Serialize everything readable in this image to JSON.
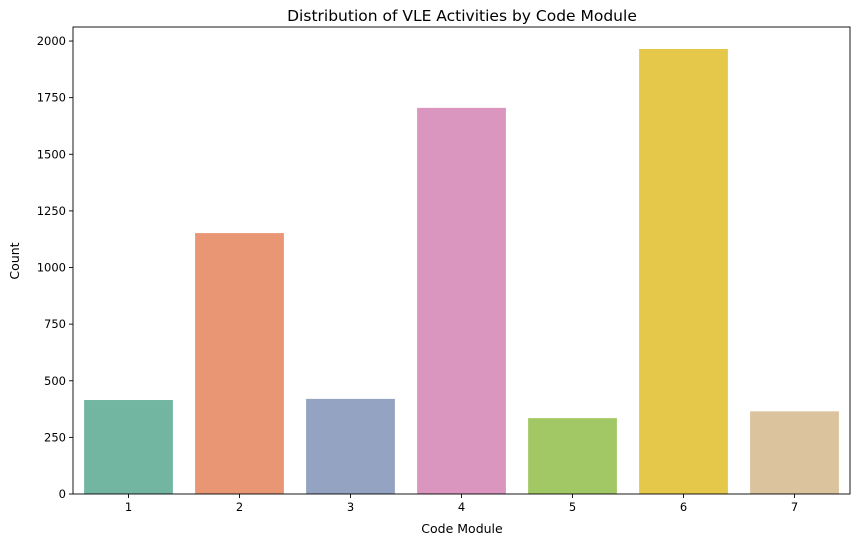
{
  "chart_data": {
    "type": "bar",
    "title": "Distribution of VLE Activities by Code Module",
    "xlabel": "Code Module",
    "ylabel": "Count",
    "categories": [
      "1",
      "2",
      "3",
      "4",
      "5",
      "6",
      "7"
    ],
    "values": [
      415,
      1152,
      420,
      1705,
      335,
      1965,
      365
    ],
    "colors": [
      "#72b6a1",
      "#e99675",
      "#95a3c3",
      "#db96c0",
      "#a2c865",
      "#e5c849",
      "#dbc39d"
    ],
    "ylim": [
      0,
      2062
    ],
    "yticks": [
      0,
      250,
      500,
      750,
      1000,
      1250,
      1500,
      1750,
      2000
    ],
    "grid": false,
    "legend": "none"
  }
}
